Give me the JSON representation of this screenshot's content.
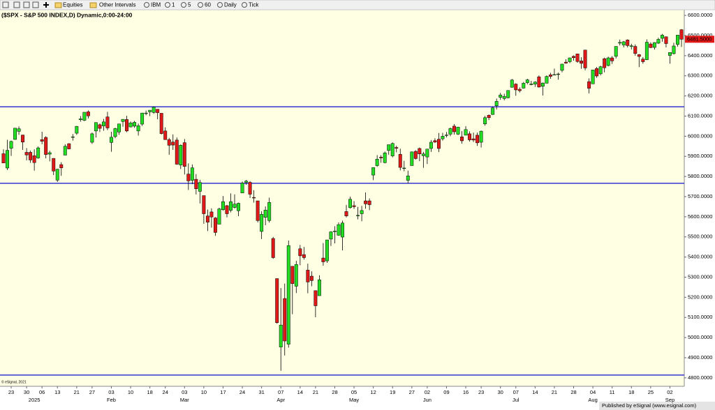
{
  "toolbar": {
    "items": [
      "Equities",
      "Other Intervals",
      "IBM",
      "1",
      "5",
      "60",
      "Daily",
      "Tick"
    ]
  },
  "footer": {
    "published": "Published by eSignal (www.esignal.com)",
    "watermark": "© eSignal, 2021"
  },
  "chart_data": {
    "type": "candlestick",
    "title": "($SPX - S&P 500 INDEX,D) Dynamic,0:00-24:00",
    "up_color": "#22dd22",
    "down_color": "#e01818",
    "hline_color": "#3535d0",
    "background": "#ffffe4",
    "ylim": [
      4758,
      6628
    ],
    "yticks": [
      {
        "value": 4800,
        "label": "4800.0000"
      },
      {
        "value": 4900,
        "label": "4900.0000"
      },
      {
        "value": 5000,
        "label": "5000.0000"
      },
      {
        "value": 5100,
        "label": "5100.0000"
      },
      {
        "value": 5200,
        "label": "5200.0000"
      },
      {
        "value": 5300,
        "label": "5300.0000"
      },
      {
        "value": 5400,
        "label": "5400.0000"
      },
      {
        "value": 5500,
        "label": "5500.0000"
      },
      {
        "value": 5600,
        "label": "5600.0000"
      },
      {
        "value": 5700,
        "label": "5700.0000"
      },
      {
        "value": 5800,
        "label": "5800.0000"
      },
      {
        "value": 5900,
        "label": "5900.0000"
      },
      {
        "value": 6000,
        "label": "6000.0000"
      },
      {
        "value": 6100,
        "label": "6100.0000"
      },
      {
        "value": 6200,
        "label": "6200.0000"
      },
      {
        "value": 6300,
        "label": "6300.0000"
      },
      {
        "value": 6400,
        "label": "6400.0000"
      },
      {
        "value": 6500,
        "label": "6500.0000"
      },
      {
        "value": 6600,
        "label": "6600.0000"
      }
    ],
    "hlines": [
      6146,
      5766,
      4814
    ],
    "last_price": {
      "value": 6481.5,
      "label": "6481.5000"
    },
    "categories": [
      null,
      null,
      "23",
      null,
      null,
      null,
      "30",
      null,
      null,
      null,
      "06",
      null,
      null,
      null,
      "13",
      null,
      null,
      null,
      null,
      "21",
      null,
      null,
      null,
      "27",
      null,
      null,
      null,
      null,
      "03",
      null,
      null,
      null,
      null,
      "10",
      null,
      null,
      null,
      null,
      "18",
      null,
      null,
      null,
      "24",
      null,
      null,
      null,
      null,
      "03",
      null,
      null,
      null,
      null,
      "10",
      null,
      null,
      null,
      null,
      "17",
      null,
      null,
      null,
      null,
      "24",
      null,
      null,
      null,
      null,
      "31",
      null,
      null,
      null,
      null,
      "07",
      null,
      null,
      null,
      null,
      "14",
      null,
      null,
      null,
      "21",
      null,
      null,
      null,
      null,
      "28",
      null,
      null,
      null,
      null,
      "05",
      null,
      null,
      null,
      null,
      "12",
      null,
      null,
      null,
      null,
      "19",
      null,
      null,
      null,
      null,
      "27",
      null,
      null,
      null,
      "02",
      null,
      null,
      null,
      null,
      "09",
      null,
      null,
      null,
      null,
      "16",
      null,
      null,
      null,
      "23",
      null,
      null,
      null,
      null,
      "30",
      null,
      null,
      null,
      "07",
      null,
      null,
      null,
      null,
      "14",
      null,
      null,
      null,
      null,
      "21",
      null,
      null,
      null,
      null,
      "28",
      null,
      null,
      null,
      null,
      "04",
      null,
      null,
      null,
      null,
      "11",
      null,
      null,
      null,
      null,
      "18",
      null,
      null,
      null,
      null,
      "25",
      null,
      null,
      null,
      null,
      "02",
      null,
      null,
      null
    ],
    "category_groups": [
      null,
      null,
      null,
      null,
      null,
      null,
      null,
      null,
      "2025",
      null,
      null,
      null,
      null,
      null,
      null,
      null,
      null,
      null,
      null,
      null,
      null,
      null,
      null,
      null,
      null,
      null,
      null,
      null,
      "Feb",
      null,
      null,
      null,
      null,
      null,
      null,
      null,
      null,
      null,
      null,
      null,
      null,
      null,
      null,
      null,
      null,
      null,
      null,
      "Mar",
      null,
      null,
      null,
      null,
      null,
      null,
      null,
      null,
      null,
      null,
      null,
      null,
      null,
      null,
      null,
      null,
      null,
      null,
      null,
      null,
      null,
      null,
      null,
      null,
      "Apr",
      null,
      null,
      null,
      null,
      null,
      null,
      null,
      null,
      null,
      null,
      null,
      null,
      null,
      null,
      null,
      null,
      null,
      null,
      "May",
      null,
      null,
      null,
      null,
      null,
      null,
      null,
      null,
      null,
      null,
      null,
      null,
      null,
      null,
      null,
      null,
      null,
      null,
      "Jun",
      null,
      null,
      null,
      null,
      null,
      null,
      null,
      null,
      null,
      null,
      null,
      null,
      null,
      null,
      null,
      null,
      null,
      null,
      null,
      null,
      null,
      null,
      "Jul",
      null,
      null,
      null,
      null,
      null,
      null,
      null,
      null,
      null,
      null,
      null,
      null,
      null,
      null,
      null,
      null,
      null,
      null,
      null,
      "Aug",
      null,
      null,
      null,
      null,
      null,
      null,
      null,
      null,
      null,
      null,
      null,
      null,
      null,
      null,
      null,
      null,
      null,
      null,
      null,
      "Sep",
      null,
      null,
      null
    ],
    "candles": [
      [
        5913,
        5935,
        5866,
        5867
      ],
      [
        5842,
        5982,
        5832,
        5930
      ],
      [
        5940,
        5978,
        5902,
        5974
      ],
      [
        5984,
        6040,
        5982,
        6040
      ],
      [
        6024,
        6049,
        6007,
        6037
      ],
      [
        6006,
        6007,
        5932,
        5971
      ],
      [
        5920,
        5941,
        5880,
        5907
      ],
      [
        5920,
        5929,
        5868,
        5882
      ],
      [
        5903,
        5935,
        5829,
        5869
      ],
      [
        5892,
        5949,
        5888,
        5942
      ],
      [
        5983,
        6022,
        5960,
        5975
      ],
      [
        5994,
        6000,
        5890,
        5909
      ],
      [
        5911,
        5928,
        5875,
        5918
      ],
      [
        5890,
        5890,
        5807,
        5827
      ],
      [
        5782,
        5838,
        5773,
        5836
      ],
      [
        5859,
        5871,
        5803,
        5843
      ],
      [
        5906,
        5960,
        5906,
        5950
      ],
      [
        5963,
        5965,
        5935,
        5937
      ],
      [
        5995,
        6011,
        5978,
        5997
      ],
      [
        6015,
        6051,
        6007,
        6049
      ],
      [
        6082,
        6100,
        6072,
        6086
      ],
      [
        6079,
        6119,
        6075,
        6119
      ],
      [
        6121,
        6128,
        6088,
        6101
      ],
      [
        5970,
        6018,
        5962,
        6012
      ],
      [
        6026,
        6069,
        5994,
        6068
      ],
      [
        6057,
        6063,
        6021,
        6039
      ],
      [
        6051,
        6086,
        6027,
        6071
      ],
      [
        6096,
        6121,
        6030,
        6041
      ],
      [
        5969,
        6022,
        5923,
        5995
      ],
      [
        5998,
        6042,
        5990,
        6038
      ],
      [
        6021,
        6062,
        6007,
        6061
      ],
      [
        6073,
        6084,
        6047,
        6084
      ],
      [
        6083,
        6101,
        6020,
        6026
      ],
      [
        6046,
        6073,
        6044,
        6066
      ],
      [
        6050,
        6076,
        6042,
        6069
      ],
      [
        6026,
        6063,
        6003,
        6052
      ],
      [
        6060,
        6116,
        6051,
        6115
      ],
      [
        6115,
        6127,
        6104,
        6115
      ],
      [
        6121,
        6130,
        6100,
        6129
      ],
      [
        6118,
        6147,
        6112,
        6144
      ],
      [
        6134,
        6134,
        6084,
        6117
      ],
      [
        6114,
        6114,
        6009,
        6013
      ],
      [
        6026,
        6044,
        5982,
        5983
      ],
      [
        5983,
        5992,
        5908,
        5955
      ],
      [
        5971,
        6009,
        5932,
        5956
      ],
      [
        5981,
        5994,
        5858,
        5861
      ],
      [
        5857,
        5959,
        5837,
        5955
      ],
      [
        5968,
        5986,
        5810,
        5850
      ],
      [
        5812,
        5865,
        5733,
        5778
      ],
      [
        5781,
        5860,
        5762,
        5843
      ],
      [
        5786,
        5812,
        5711,
        5739
      ],
      [
        5726,
        5783,
        5666,
        5770
      ],
      [
        5705,
        5705,
        5565,
        5615
      ],
      [
        5604,
        5636,
        5529,
        5573
      ],
      [
        5624,
        5642,
        5546,
        5599
      ],
      [
        5594,
        5598,
        5505,
        5522
      ],
      [
        5563,
        5645,
        5563,
        5639
      ],
      [
        5635,
        5703,
        5630,
        5675
      ],
      [
        5655,
        5659,
        5597,
        5615
      ],
      [
        5632,
        5716,
        5622,
        5675
      ],
      [
        5646,
        5711,
        5641,
        5663
      ],
      [
        5630,
        5670,
        5603,
        5667
      ],
      [
        5718,
        5775,
        5718,
        5767
      ],
      [
        5771,
        5783,
        5759,
        5777
      ],
      [
        5771,
        5777,
        5693,
        5712
      ],
      [
        5696,
        5732,
        5670,
        5693
      ],
      [
        5679,
        5679,
        5572,
        5581
      ],
      [
        5527,
        5627,
        5489,
        5612
      ],
      [
        5597,
        5651,
        5558,
        5633
      ],
      [
        5581,
        5695,
        5571,
        5671
      ],
      [
        5492,
        5500,
        5391,
        5397
      ],
      [
        5293,
        5293,
        5069,
        5074
      ],
      [
        4953,
        5246,
        4835,
        5062
      ],
      [
        5194,
        5268,
        4911,
        4983
      ],
      [
        4967,
        5482,
        4950,
        5457
      ],
      [
        5354,
        5354,
        5116,
        5268
      ],
      [
        5255,
        5381,
        5221,
        5363
      ],
      [
        5441,
        5460,
        5359,
        5406
      ],
      [
        5412,
        5450,
        5387,
        5397
      ],
      [
        5335,
        5367,
        5220,
        5276
      ],
      [
        5305,
        5329,
        5255,
        5283
      ],
      [
        5233,
        5233,
        5101,
        5158
      ],
      [
        5208,
        5309,
        5208,
        5287
      ],
      [
        5395,
        5469,
        5357,
        5376
      ],
      [
        5381,
        5485,
        5371,
        5485
      ],
      [
        5489,
        5528,
        5455,
        5525
      ],
      [
        5529,
        5553,
        5468,
        5529
      ],
      [
        5508,
        5572,
        5506,
        5561
      ],
      [
        5499,
        5581,
        5433,
        5569
      ],
      [
        5626,
        5659,
        5597,
        5604
      ],
      [
        5645,
        5700,
        5641,
        5687
      ],
      [
        5655,
        5678,
        5639,
        5650
      ],
      [
        5606,
        5649,
        5587,
        5607
      ],
      [
        5615,
        5654,
        5578,
        5631
      ],
      [
        5679,
        5721,
        5640,
        5664
      ],
      [
        5679,
        5691,
        5633,
        5660
      ],
      [
        5807,
        5845,
        5782,
        5844
      ],
      [
        5854,
        5906,
        5848,
        5886
      ],
      [
        5896,
        5906,
        5868,
        5892
      ],
      [
        5869,
        5924,
        5865,
        5917
      ],
      [
        5929,
        5958,
        5908,
        5958
      ],
      [
        5902,
        5969,
        5895,
        5964
      ],
      [
        5944,
        5953,
        5920,
        5940
      ],
      [
        5910,
        5938,
        5830,
        5845
      ],
      [
        5841,
        5878,
        5826,
        5842
      ],
      [
        5781,
        5829,
        5767,
        5803
      ],
      [
        5854,
        5924,
        5854,
        5922
      ],
      [
        5925,
        5930,
        5884,
        5889
      ],
      [
        5939,
        5944,
        5876,
        5912
      ],
      [
        5903,
        5922,
        5843,
        5912
      ],
      [
        5897,
        5937,
        5862,
        5936
      ],
      [
        5939,
        5981,
        5922,
        5970
      ],
      [
        5978,
        5990,
        5966,
        5971
      ],
      [
        5985,
        6016,
        5921,
        5939
      ],
      [
        5987,
        6017,
        5978,
        6000
      ],
      [
        6005,
        6021,
        5994,
        6006
      ],
      [
        6010,
        6043,
        6000,
        6038
      ],
      [
        6050,
        6060,
        6008,
        6022
      ],
      [
        6010,
        6047,
        6006,
        6045
      ],
      [
        5997,
        6026,
        5963,
        5977
      ],
      [
        6005,
        6050,
        6005,
        6033
      ],
      [
        6012,
        6024,
        5973,
        5982
      ],
      [
        5987,
        6018,
        5971,
        5981
      ],
      [
        6005,
        6018,
        5952,
        5967
      ],
      [
        5970,
        6028,
        5944,
        6025
      ],
      [
        6061,
        6101,
        6052,
        6092
      ],
      [
        6104,
        6108,
        6080,
        6092
      ],
      [
        6108,
        6146,
        6106,
        6141
      ],
      [
        6151,
        6187,
        6133,
        6173
      ],
      [
        6193,
        6215,
        6181,
        6205
      ],
      [
        6187,
        6211,
        6178,
        6198
      ],
      [
        6191,
        6227,
        6188,
        6227
      ],
      [
        6243,
        6284,
        6241,
        6279
      ],
      [
        6259,
        6263,
        6201,
        6230
      ],
      [
        6233,
        6243,
        6217,
        6226
      ],
      [
        6239,
        6269,
        6237,
        6263
      ],
      [
        6266,
        6285,
        6258,
        6280
      ],
      [
        6256,
        6275,
        6253,
        6260
      ],
      [
        6259,
        6273,
        6245,
        6269
      ],
      [
        6295,
        6302,
        6242,
        6244
      ],
      [
        6248,
        6267,
        6202,
        6264
      ],
      [
        6263,
        6302,
        6263,
        6297
      ],
      [
        6305,
        6315,
        6285,
        6297
      ],
      [
        6304,
        6336,
        6303,
        6306
      ],
      [
        6307,
        6316,
        6281,
        6309
      ],
      [
        6327,
        6359,
        6317,
        6358
      ],
      [
        6368,
        6382,
        6360,
        6363
      ],
      [
        6370,
        6390,
        6363,
        6389
      ],
      [
        6397,
        6401,
        6375,
        6390
      ],
      [
        6409,
        6410,
        6365,
        6371
      ],
      [
        6374,
        6392,
        6335,
        6362
      ],
      [
        6428,
        6428,
        6327,
        6339
      ],
      [
        6271,
        6287,
        6213,
        6238
      ],
      [
        6260,
        6330,
        6260,
        6329
      ],
      [
        6336,
        6344,
        6290,
        6299
      ],
      [
        6310,
        6350,
        6302,
        6345
      ],
      [
        6385,
        6390,
        6317,
        6340
      ],
      [
        6351,
        6395,
        6347,
        6389
      ],
      [
        6389,
        6398,
        6359,
        6374
      ],
      [
        6397,
        6446,
        6386,
        6446
      ],
      [
        6462,
        6480,
        6451,
        6466
      ],
      [
        6453,
        6473,
        6441,
        6469
      ],
      [
        6478,
        6481,
        6441,
        6450
      ],
      [
        6445,
        6459,
        6431,
        6449
      ],
      [
        6446,
        6456,
        6400,
        6411
      ],
      [
        6405,
        6408,
        6343,
        6396
      ],
      [
        6383,
        6393,
        6360,
        6370
      ],
      [
        6380,
        6481,
        6378,
        6467
      ],
      [
        6458,
        6466,
        6438,
        6440
      ],
      [
        6441,
        6467,
        6430,
        6465
      ],
      [
        6462,
        6489,
        6458,
        6481
      ],
      [
        6486,
        6508,
        6469,
        6502
      ],
      [
        6494,
        6495,
        6441,
        6460
      ],
      [
        6401,
        6416,
        6360,
        6416
      ],
      [
        6410,
        6464,
        6406,
        6448
      ],
      [
        6456,
        6502,
        6445,
        6502
      ],
      [
        6529,
        6532,
        6443,
        6481.5
      ]
    ]
  }
}
